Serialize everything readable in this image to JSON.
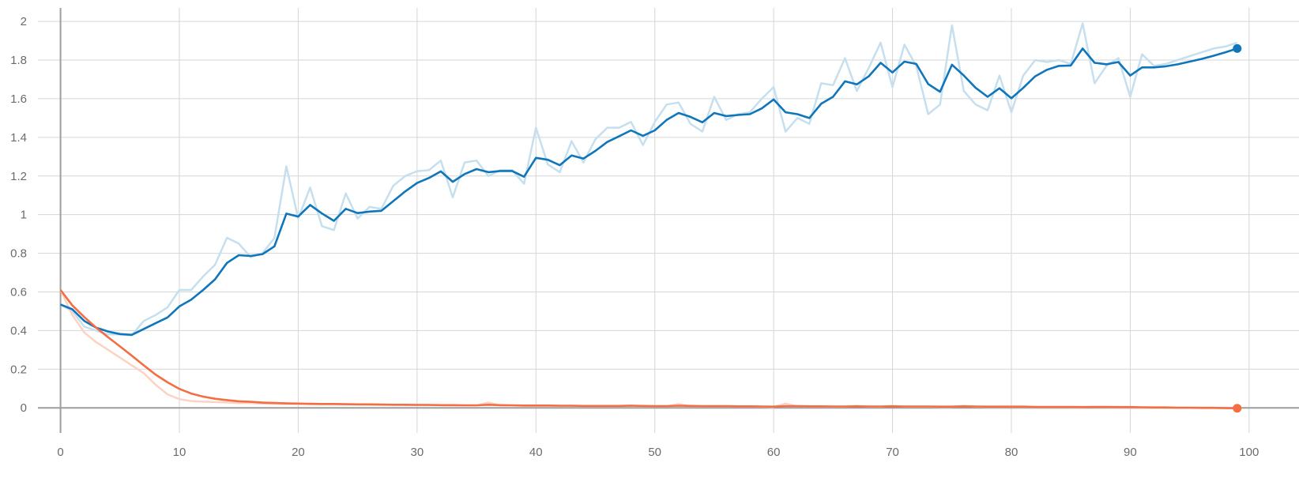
{
  "chart_data": {
    "type": "line",
    "title": "",
    "xlabel": "",
    "ylabel": "",
    "xlim": [
      -1.9,
      104.2
    ],
    "ylim": [
      -0.13,
      2.07
    ],
    "x_ticks": [
      0,
      10,
      20,
      30,
      40,
      50,
      60,
      70,
      80,
      90,
      100
    ],
    "x_tick_labels": [
      "0",
      "10",
      "20",
      "30",
      "40",
      "50",
      "60",
      "70",
      "80",
      "90",
      "100"
    ],
    "y_ticks": [
      0,
      0.2,
      0.4,
      0.6,
      0.8,
      1,
      1.2,
      1.4,
      1.6,
      1.8,
      2
    ],
    "y_tick_labels": [
      "0",
      "0.2",
      "0.4",
      "0.6",
      "0.8",
      "1",
      "1.2",
      "1.4",
      "1.6",
      "1.8",
      "2"
    ],
    "grid": true,
    "legend": "none",
    "series": [
      {
        "color": "#0f76bb",
        "raw_color": "#c6dfef",
        "x": [
          0,
          1,
          2,
          3,
          4,
          5,
          6,
          7,
          8,
          9,
          10,
          11,
          12,
          13,
          14,
          15,
          16,
          17,
          18,
          19,
          20,
          21,
          22,
          23,
          24,
          25,
          26,
          27,
          28,
          29,
          30,
          31,
          32,
          33,
          34,
          35,
          36,
          37,
          38,
          39,
          40,
          41,
          42,
          43,
          44,
          45,
          46,
          47,
          48,
          49,
          50,
          51,
          52,
          53,
          54,
          55,
          56,
          57,
          58,
          59,
          60,
          61,
          62,
          63,
          64,
          65,
          66,
          67,
          68,
          69,
          70,
          71,
          72,
          73,
          74,
          75,
          76,
          77,
          78,
          79,
          80,
          81,
          82,
          83,
          84,
          85,
          86,
          87,
          88,
          89,
          90,
          91,
          92,
          93,
          94,
          95,
          96,
          97,
          98,
          99
        ],
        "smoothed": [
          0.535,
          0.51,
          0.45,
          0.415,
          0.395,
          0.382,
          0.378,
          0.408,
          0.438,
          0.468,
          0.525,
          0.56,
          0.61,
          0.665,
          0.75,
          0.79,
          0.786,
          0.796,
          0.836,
          1.005,
          0.99,
          1.05,
          1.006,
          0.968,
          1.03,
          1.008,
          1.016,
          1.02,
          1.07,
          1.12,
          1.164,
          1.19,
          1.224,
          1.17,
          1.21,
          1.236,
          1.22,
          1.226,
          1.226,
          1.196,
          1.294,
          1.284,
          1.256,
          1.306,
          1.29,
          1.33,
          1.376,
          1.406,
          1.436,
          1.408,
          1.436,
          1.49,
          1.526,
          1.506,
          1.478,
          1.526,
          1.51,
          1.516,
          1.52,
          1.55,
          1.596,
          1.53,
          1.52,
          1.5,
          1.574,
          1.61,
          1.69,
          1.674,
          1.716,
          1.786,
          1.736,
          1.792,
          1.78,
          1.676,
          1.636,
          1.776,
          1.72,
          1.656,
          1.61,
          1.654,
          1.602,
          1.656,
          1.716,
          1.75,
          1.77,
          1.772,
          1.86,
          1.786,
          1.778,
          1.79,
          1.72,
          1.762,
          1.762,
          1.768,
          1.778,
          1.792,
          1.806,
          1.822,
          1.84,
          1.86
        ],
        "raw": [
          0.535,
          0.5,
          0.42,
          0.4,
          0.38,
          0.38,
          0.376,
          0.45,
          0.48,
          0.52,
          0.61,
          0.61,
          0.68,
          0.74,
          0.88,
          0.85,
          0.78,
          0.8,
          0.88,
          1.25,
          0.98,
          1.14,
          0.94,
          0.92,
          1.11,
          0.98,
          1.04,
          1.03,
          1.15,
          1.2,
          1.225,
          1.23,
          1.28,
          1.09,
          1.27,
          1.28,
          1.2,
          1.23,
          1.23,
          1.16,
          1.45,
          1.26,
          1.22,
          1.38,
          1.27,
          1.39,
          1.45,
          1.45,
          1.48,
          1.36,
          1.48,
          1.57,
          1.58,
          1.47,
          1.43,
          1.61,
          1.49,
          1.52,
          1.53,
          1.6,
          1.66,
          1.43,
          1.5,
          1.47,
          1.68,
          1.67,
          1.81,
          1.64,
          1.76,
          1.89,
          1.66,
          1.88,
          1.77,
          1.52,
          1.57,
          1.98,
          1.64,
          1.57,
          1.54,
          1.72,
          1.53,
          1.72,
          1.8,
          1.79,
          1.8,
          1.78,
          1.99,
          1.68,
          1.77,
          1.81,
          1.61,
          1.83,
          1.77,
          1.78,
          1.8,
          1.82,
          1.84,
          1.86,
          1.87,
          1.89
        ]
      },
      {
        "color": "#f46d43",
        "raw_color": "#fbd3c5",
        "x": [
          0,
          1,
          2,
          3,
          4,
          5,
          6,
          7,
          8,
          9,
          10,
          11,
          12,
          13,
          14,
          15,
          16,
          17,
          18,
          19,
          20,
          21,
          22,
          23,
          24,
          25,
          26,
          27,
          28,
          29,
          30,
          31,
          32,
          33,
          34,
          35,
          36,
          37,
          38,
          39,
          40,
          41,
          42,
          43,
          44,
          45,
          46,
          47,
          48,
          49,
          50,
          51,
          52,
          53,
          54,
          55,
          56,
          57,
          58,
          59,
          60,
          61,
          62,
          63,
          64,
          65,
          66,
          67,
          68,
          69,
          70,
          71,
          72,
          73,
          74,
          75,
          76,
          77,
          78,
          79,
          80,
          81,
          82,
          83,
          84,
          85,
          86,
          87,
          88,
          89,
          90,
          91,
          92,
          93,
          94,
          95,
          96,
          97,
          98,
          99
        ],
        "smoothed": [
          0.61,
          0.53,
          0.47,
          0.415,
          0.365,
          0.318,
          0.27,
          0.22,
          0.172,
          0.132,
          0.098,
          0.074,
          0.058,
          0.047,
          0.04,
          0.034,
          0.031,
          0.027,
          0.025,
          0.023,
          0.022,
          0.021,
          0.02,
          0.02,
          0.019,
          0.018,
          0.018,
          0.017,
          0.016,
          0.016,
          0.015,
          0.015,
          0.014,
          0.014,
          0.013,
          0.013,
          0.016,
          0.014,
          0.013,
          0.012,
          0.012,
          0.012,
          0.011,
          0.011,
          0.01,
          0.01,
          0.01,
          0.01,
          0.011,
          0.01,
          0.009,
          0.009,
          0.011,
          0.01,
          0.009,
          0.009,
          0.009,
          0.008,
          0.008,
          0.007,
          0.006,
          0.009,
          0.009,
          0.008,
          0.008,
          0.007,
          0.007,
          0.008,
          0.007,
          0.007,
          0.008,
          0.007,
          0.007,
          0.007,
          0.006,
          0.006,
          0.008,
          0.007,
          0.006,
          0.006,
          0.006,
          0.006,
          0.005,
          0.005,
          0.005,
          0.005,
          0.004,
          0.005,
          0.005,
          0.004,
          0.004,
          0.003,
          0.002,
          0.002,
          0.001,
          0.001,
          0.0,
          0.0,
          -0.001,
          -0.002
        ],
        "raw": [
          0.61,
          0.48,
          0.39,
          0.34,
          0.3,
          0.26,
          0.22,
          0.18,
          0.12,
          0.07,
          0.045,
          0.035,
          0.032,
          0.03,
          0.028,
          0.025,
          0.025,
          0.022,
          0.02,
          0.02,
          0.02,
          0.019,
          0.019,
          0.019,
          0.018,
          0.018,
          0.017,
          0.016,
          0.016,
          0.015,
          0.015,
          0.014,
          0.014,
          0.013,
          0.013,
          0.012,
          0.028,
          0.012,
          0.012,
          0.011,
          0.011,
          0.011,
          0.01,
          0.01,
          0.01,
          0.01,
          0.01,
          0.01,
          0.012,
          0.009,
          0.008,
          0.008,
          0.02,
          0.009,
          0.008,
          0.008,
          0.008,
          0.007,
          0.007,
          0.006,
          0.004,
          0.022,
          0.008,
          0.007,
          0.007,
          0.006,
          0.006,
          0.01,
          0.006,
          0.006,
          0.01,
          0.006,
          0.006,
          0.006,
          0.005,
          0.005,
          0.01,
          0.006,
          0.005,
          0.005,
          0.005,
          0.005,
          0.004,
          0.004,
          0.004,
          0.004,
          0.003,
          0.005,
          0.004,
          0.003,
          0.003,
          0.002,
          0.001,
          0.001,
          0.0,
          0.0,
          -0.001,
          -0.001,
          -0.002,
          -0.003
        ]
      }
    ]
  }
}
